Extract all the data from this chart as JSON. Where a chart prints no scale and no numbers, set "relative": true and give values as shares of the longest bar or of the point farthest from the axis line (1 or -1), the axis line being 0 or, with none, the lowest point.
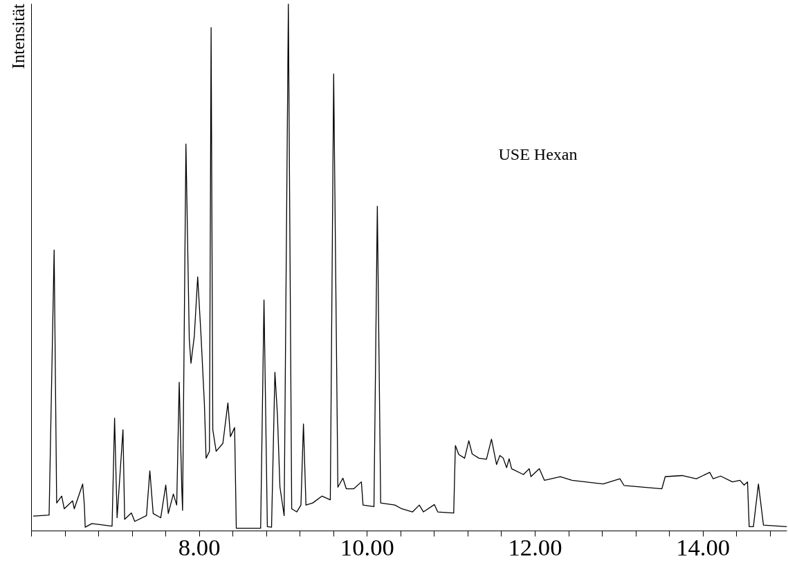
{
  "chart_data": {
    "type": "line",
    "relative": true,
    "ylabel": "Intensität",
    "annotations": [
      "USE Hexan"
    ],
    "color": "#000000",
    "grid": false,
    "marker": "none",
    "line_style": "solid",
    "xlim": [
      6,
      15
    ],
    "xticks": [
      {
        "value": 6.0,
        "label": null
      },
      {
        "value": 6.4,
        "label": null
      },
      {
        "value": 6.8,
        "label": null
      },
      {
        "value": 7.2,
        "label": null
      },
      {
        "value": 7.6,
        "label": null
      },
      {
        "value": 8,
        "label": "8.00"
      },
      {
        "value": 8.4,
        "label": null
      },
      {
        "value": 8.8,
        "label": null
      },
      {
        "value": 9.2,
        "label": null
      },
      {
        "value": 9.6,
        "label": null
      },
      {
        "value": 10,
        "label": "10.00"
      },
      {
        "value": 10.4,
        "label": null
      },
      {
        "value": 10.8,
        "label": null
      },
      {
        "value": 11.2,
        "label": null
      },
      {
        "value": 11.6,
        "label": null
      },
      {
        "value": 12,
        "label": "12.00"
      },
      {
        "value": 12.4,
        "label": null
      },
      {
        "value": 12.8,
        "label": null
      },
      {
        "value": 13.2,
        "label": null
      },
      {
        "value": 13.6,
        "label": null
      },
      {
        "value": 14,
        "label": "14.00"
      },
      {
        "value": 14.4,
        "label": null
      },
      {
        "value": 14.8,
        "label": null
      }
    ],
    "x": [
      6.02,
      6.21,
      6.27,
      6.3,
      6.36,
      6.39,
      6.49,
      6.51,
      6.61,
      6.63,
      6.64,
      6.72,
      6.96,
      6.99,
      7.02,
      7.09,
      7.11,
      7.19,
      7.23,
      7.37,
      7.41,
      7.45,
      7.54,
      7.6,
      7.63,
      7.69,
      7.73,
      7.76,
      7.79,
      7.8,
      7.84,
      7.88,
      7.9,
      7.94,
      7.98,
      8.02,
      8.06,
      8.08,
      8.12,
      8.14,
      8.16,
      8.2,
      8.28,
      8.34,
      8.37,
      8.42,
      8.44,
      8.73,
      8.77,
      8.81,
      8.86,
      8.9,
      8.93,
      8.96,
      9.01,
      9.06,
      9.1,
      9.16,
      9.21,
      9.24,
      9.27,
      9.35,
      9.46,
      9.56,
      9.6,
      9.65,
      9.71,
      9.75,
      9.84,
      9.93,
      9.95,
      10.08,
      10.12,
      10.16,
      10.33,
      10.41,
      10.54,
      10.62,
      10.67,
      10.8,
      10.84,
      11.03,
      11.05,
      11.09,
      11.16,
      11.21,
      11.25,
      11.33,
      11.42,
      11.48,
      11.54,
      11.58,
      11.62,
      11.66,
      11.69,
      11.72,
      11.86,
      11.93,
      11.95,
      12.05,
      12.11,
      12.3,
      12.44,
      12.81,
      13.01,
      13.06,
      13.51,
      13.55,
      13.75,
      13.92,
      14.08,
      14.12,
      14.21,
      14.35,
      14.44,
      14.49,
      14.53,
      14.55,
      14.6,
      14.66,
      14.72,
      15.0
    ],
    "values": [
      0.028,
      0.03,
      0.533,
      0.053,
      0.066,
      0.042,
      0.057,
      0.042,
      0.089,
      0.049,
      0.007,
      0.014,
      0.009,
      0.214,
      0.025,
      0.192,
      0.022,
      0.034,
      0.018,
      0.029,
      0.114,
      0.033,
      0.025,
      0.087,
      0.033,
      0.07,
      0.049,
      0.282,
      0.083,
      0.039,
      0.734,
      0.363,
      0.318,
      0.37,
      0.482,
      0.37,
      0.241,
      0.138,
      0.151,
      0.955,
      0.192,
      0.151,
      0.166,
      0.243,
      0.179,
      0.196,
      0.005,
      0.005,
      0.438,
      0.008,
      0.007,
      0.301,
      0.22,
      0.083,
      0.029,
      1.0,
      0.042,
      0.036,
      0.049,
      0.203,
      0.049,
      0.053,
      0.066,
      0.059,
      0.867,
      0.083,
      0.1,
      0.08,
      0.08,
      0.093,
      0.049,
      0.046,
      0.616,
      0.053,
      0.049,
      0.042,
      0.036,
      0.049,
      0.036,
      0.05,
      0.036,
      0.034,
      0.162,
      0.145,
      0.138,
      0.171,
      0.146,
      0.138,
      0.136,
      0.174,
      0.126,
      0.143,
      0.138,
      0.12,
      0.137,
      0.118,
      0.107,
      0.118,
      0.103,
      0.118,
      0.096,
      0.103,
      0.096,
      0.089,
      0.099,
      0.086,
      0.08,
      0.103,
      0.105,
      0.099,
      0.111,
      0.099,
      0.104,
      0.093,
      0.096,
      0.087,
      0.093,
      0.008,
      0.008,
      0.089,
      0.011,
      0.008
    ]
  }
}
